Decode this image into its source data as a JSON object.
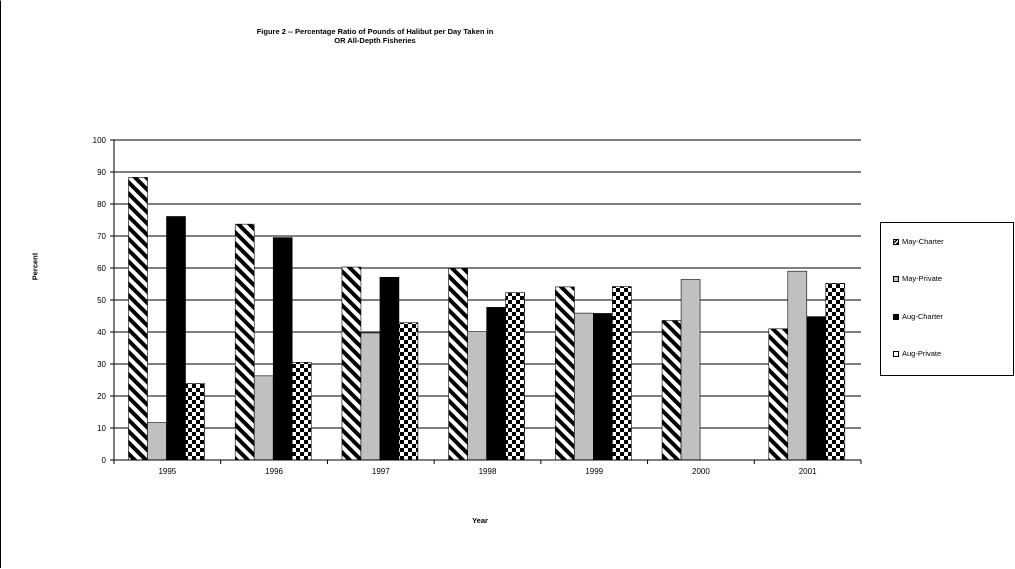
{
  "chart_data": {
    "type": "bar",
    "title": "Figure 2 -- Percentage Ratio of Pounds of Halibut per Day Taken in",
    "subtitle": "OR All-Depth Fisheries",
    "xlabel": "Year",
    "ylabel": "Percent",
    "ylim": [
      0,
      100
    ],
    "yticks": [
      "0",
      "10",
      "20",
      "30",
      "40",
      "50",
      "60",
      "70",
      "80",
      "90",
      "100"
    ],
    "grid": true,
    "legend_position": "right",
    "categories": [
      "1995",
      "1996",
      "1997",
      "1998",
      "1999",
      "2000",
      "2001"
    ],
    "series": [
      {
        "name": "May-Charter",
        "values": [
          88.3,
          73.7,
          60.3,
          59.9,
          54.1,
          43.6,
          41.0
        ],
        "fill": "diagonal-stripes",
        "color": "#000000"
      },
      {
        "name": "May-Private",
        "values": [
          11.7,
          26.3,
          39.7,
          40.1,
          45.9,
          56.4,
          59.0
        ],
        "fill": "solid",
        "color": "#c0c0c0"
      },
      {
        "name": "Aug-Charter",
        "values": [
          76.1,
          69.5,
          57.1,
          47.7,
          45.8,
          null,
          44.8
        ],
        "fill": "solid",
        "color": "#000000"
      },
      {
        "name": "Aug-Private",
        "values": [
          23.9,
          30.5,
          42.9,
          52.3,
          54.2,
          null,
          55.2
        ],
        "fill": "checkerboard",
        "color": "#000000"
      }
    ]
  }
}
